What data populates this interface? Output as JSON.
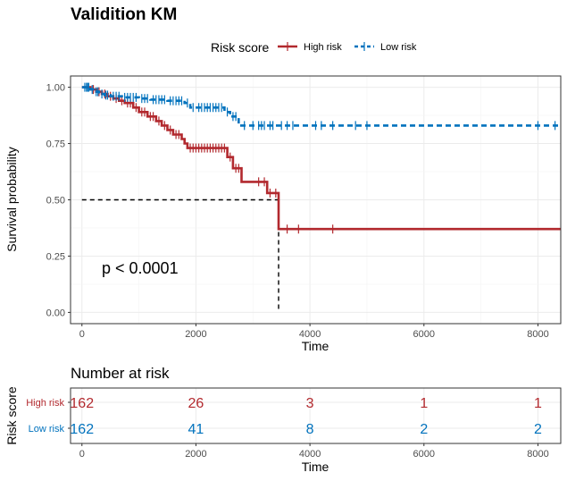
{
  "title": "Validition KM",
  "legend": {
    "title": "Risk score",
    "items": [
      {
        "label": "High risk",
        "color": "#B2292E"
      },
      {
        "label": "Low risk",
        "color": "#0072BD"
      }
    ]
  },
  "chart_data": [
    {
      "type": "line",
      "subtype": "kaplan-meier",
      "xlabel": "Time",
      "ylabel": "Survival probability",
      "xlim": [
        -200,
        8400
      ],
      "ylim": [
        -0.05,
        1.05
      ],
      "xticks": [
        0,
        2000,
        4000,
        6000,
        8000
      ],
      "yticks": [
        0,
        0.25,
        0.5,
        0.75,
        1.0
      ],
      "ytick_labels": [
        "0.00",
        "0.25",
        "0.50",
        "0.75",
        "1.00"
      ],
      "grid": true,
      "legend_position": "top",
      "annotation": "p < 0.0001",
      "median_survival": {
        "series": "High risk",
        "time": 3450,
        "prob": 0.5
      },
      "series": [
        {
          "name": "High risk",
          "color": "#B2292E",
          "style": "solid",
          "steps": [
            [
              0,
              1.0
            ],
            [
              150,
              0.99
            ],
            [
              250,
              0.98
            ],
            [
              350,
              0.97
            ],
            [
              450,
              0.96
            ],
            [
              550,
              0.95
            ],
            [
              650,
              0.94
            ],
            [
              750,
              0.93
            ],
            [
              900,
              0.91
            ],
            [
              1000,
              0.89
            ],
            [
              1150,
              0.87
            ],
            [
              1300,
              0.85
            ],
            [
              1400,
              0.83
            ],
            [
              1500,
              0.81
            ],
            [
              1600,
              0.79
            ],
            [
              1750,
              0.77
            ],
            [
              1800,
              0.75
            ],
            [
              1850,
              0.73
            ],
            [
              2550,
              0.69
            ],
            [
              2650,
              0.64
            ],
            [
              2800,
              0.58
            ],
            [
              3250,
              0.53
            ],
            [
              3450,
              0.37
            ],
            [
              8400,
              0.37
            ]
          ],
          "censor_times": [
            200,
            300,
            400,
            500,
            600,
            700,
            800,
            850,
            950,
            1050,
            1100,
            1200,
            1250,
            1350,
            1450,
            1550,
            1650,
            1700,
            1900,
            1950,
            2000,
            2050,
            2100,
            2150,
            2200,
            2250,
            2300,
            2350,
            2400,
            2450,
            2500,
            2600,
            2700,
            2750,
            3100,
            3200,
            3300,
            3400,
            3600,
            3800,
            4400
          ]
        },
        {
          "name": "Low risk",
          "color": "#0072BD",
          "style": "dashed",
          "steps": [
            [
              0,
              1.0
            ],
            [
              150,
              0.99
            ],
            [
              200,
              0.98
            ],
            [
              300,
              0.97
            ],
            [
              400,
              0.965
            ],
            [
              500,
              0.96
            ],
            [
              700,
              0.955
            ],
            [
              1000,
              0.95
            ],
            [
              1200,
              0.945
            ],
            [
              1500,
              0.94
            ],
            [
              1800,
              0.93
            ],
            [
              1900,
              0.91
            ],
            [
              2500,
              0.89
            ],
            [
              2600,
              0.87
            ],
            [
              2750,
              0.83
            ],
            [
              8400,
              0.83
            ]
          ],
          "censor_times": [
            50,
            80,
            100,
            120,
            180,
            250,
            280,
            350,
            420,
            450,
            550,
            600,
            650,
            750,
            800,
            850,
            900,
            950,
            1050,
            1100,
            1150,
            1250,
            1300,
            1350,
            1400,
            1450,
            1550,
            1600,
            1650,
            1700,
            1750,
            1850,
            1950,
            2050,
            2100,
            2150,
            2200,
            2250,
            2300,
            2350,
            2400,
            2450,
            2550,
            2650,
            2700,
            2850,
            3000,
            3100,
            3150,
            3200,
            3300,
            3350,
            3500,
            3600,
            3700,
            4100,
            4200,
            4400,
            4800,
            5000,
            8000,
            8300
          ]
        }
      ]
    },
    {
      "type": "table",
      "title": "Number at risk",
      "xlabel": "Time",
      "ylabel": "Risk score",
      "xticks": [
        0,
        2000,
        4000,
        6000,
        8000
      ],
      "rows": [
        {
          "name": "High risk",
          "color": "#B2292E",
          "values": [
            162,
            26,
            3,
            1,
            1
          ]
        },
        {
          "name": "Low risk",
          "color": "#0072BD",
          "values": [
            162,
            41,
            8,
            2,
            2
          ]
        }
      ]
    }
  ]
}
